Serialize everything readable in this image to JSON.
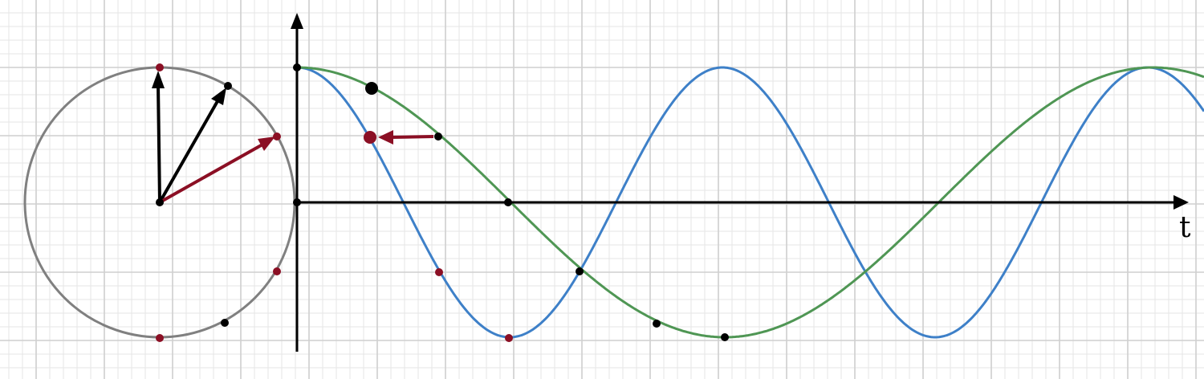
{
  "labels": {
    "time_axis": "t"
  },
  "colors": {
    "background": "#ffffff",
    "grid_minor": "#e6e6e6",
    "grid_major": "#cfcfcf",
    "circle": "#808080",
    "axis": "#000000",
    "marker_red": "#8b0f24",
    "marker_black": "#000000",
    "curve_blue": "#3e80c8",
    "curve_green": "#4f9654"
  },
  "icons": {
    "time_axis_arrow": "arrowhead-right",
    "vertical_axis_arrow": "arrowhead-up",
    "phasor_arrow": "arrowhead"
  },
  "phasors": {
    "red_angle_deg": 30,
    "black_angle_deg": 60,
    "vertical_angle_deg": 90
  },
  "curves": {
    "blue_relative_frequency": 2,
    "green_relative_frequency": 1,
    "shared_initial_value": 1
  }
}
